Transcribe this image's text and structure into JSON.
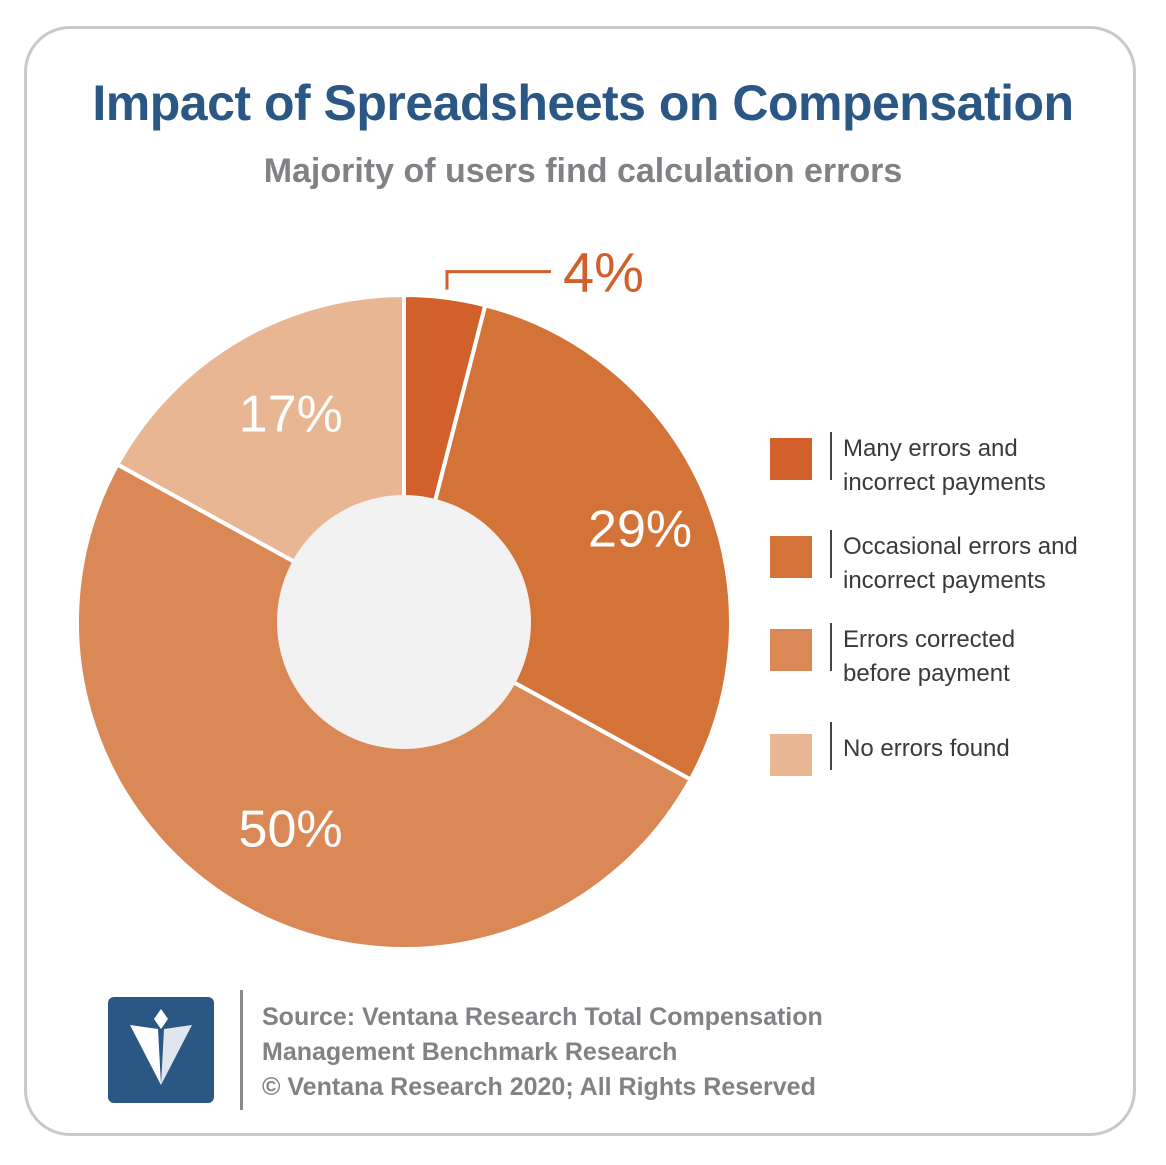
{
  "header": {
    "title": "Impact of Spreadsheets on Compensation",
    "subtitle": "Majority of users find calculation errors"
  },
  "chart_data": {
    "type": "pie",
    "style": "donut",
    "categories": [
      "Many errors and incorrect payments",
      "Occasional errors and incorrect payments",
      "Errors corrected before payment",
      "No errors found"
    ],
    "values": [
      4,
      29,
      50,
      17
    ],
    "data_labels": [
      "4%",
      "29%",
      "50%",
      "17%"
    ],
    "colors": [
      "#d1602a",
      "#d47338",
      "#da8956",
      "#e8b693"
    ],
    "legend_position": "right",
    "legend_labels": [
      [
        "Many errors and",
        "incorrect payments"
      ],
      [
        "Occasional errors and",
        "incorrect payments"
      ],
      [
        "Errors corrected",
        "before payment"
      ],
      [
        "No errors found"
      ]
    ]
  },
  "footer": {
    "source_lines": [
      "Source: Ventana Research Total Compensation",
      "Management Benchmark Research",
      "© Ventana Research 2020; All Rights Reserved"
    ],
    "logo_icon": "ventana-logo-icon"
  }
}
